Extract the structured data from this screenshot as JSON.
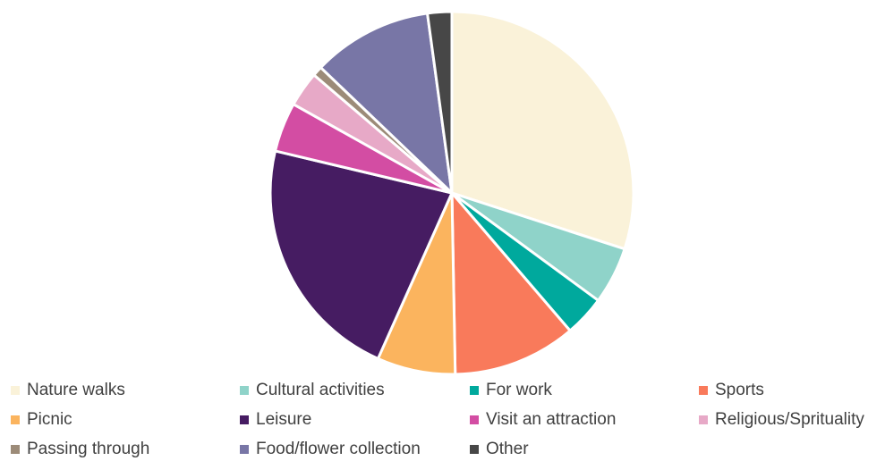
{
  "chart_data": {
    "type": "pie",
    "title": "",
    "categories": [
      "Nature walks",
      "Cultural activities",
      "For work",
      "Sports",
      "Picnic",
      "Leisure",
      "Visit an attraction",
      "Religious/Sprituality",
      "Passing through",
      "Food/flower collection",
      "Other"
    ],
    "values": [
      30.6,
      5.2,
      3.7,
      11.2,
      7.1,
      22.5,
      4.5,
      3.2,
      0.9,
      10.9,
      2.2
    ],
    "colors": [
      "#FAF2D9",
      "#8FD3C9",
      "#00A99D",
      "#F97A5B",
      "#FBB45E",
      "#461C62",
      "#D34DA3",
      "#E7A9C7",
      "#9C8B78",
      "#7876A6",
      "#474747"
    ],
    "legend_position": "bottom",
    "start_angle": "top, clockwise"
  }
}
